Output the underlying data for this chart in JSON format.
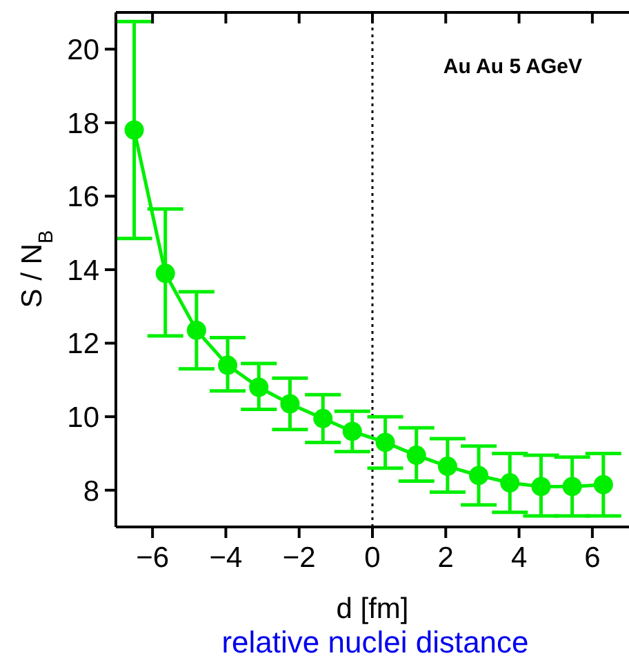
{
  "chart_data": {
    "type": "line",
    "xlabel": "d [fm]",
    "ylabel": "S / N$_{B}$",
    "x": [
      -6.5,
      -5.65,
      -4.8,
      -3.95,
      -3.1,
      -2.25,
      -1.35,
      -0.55,
      0.35,
      1.2,
      2.05,
      2.9,
      3.75,
      4.6,
      5.45,
      6.3
    ],
    "series": [
      {
        "color": "#00ee00",
        "values": [
          17.8,
          13.9,
          12.35,
          11.4,
          10.8,
          10.35,
          9.95,
          9.6,
          9.3,
          8.95,
          8.65,
          8.4,
          8.2,
          8.1,
          8.1,
          8.15
        ],
        "errors": [
          [
            14.85,
            20.75
          ],
          [
            12.2,
            15.65
          ],
          [
            11.3,
            13.4
          ],
          [
            10.7,
            12.15
          ],
          [
            10.2,
            11.45
          ],
          [
            9.65,
            11.05
          ],
          [
            9.3,
            10.6
          ],
          [
            9.05,
            10.15
          ],
          [
            8.6,
            10.0
          ],
          [
            8.25,
            9.7
          ],
          [
            7.95,
            9.4
          ],
          [
            7.6,
            9.2
          ],
          [
            7.4,
            9.0
          ],
          [
            7.3,
            8.95
          ],
          [
            7.3,
            8.9
          ],
          [
            7.3,
            9.0
          ]
        ]
      }
    ],
    "xlim": [
      -7,
      7
    ],
    "ylim": [
      7,
      21
    ],
    "xticks": [
      {
        "value": -6,
        "label": "−6"
      },
      {
        "value": -4,
        "label": "−4"
      },
      {
        "value": -2,
        "label": "−2"
      },
      0,
      2,
      4,
      6
    ],
    "yticks": [
      8,
      10,
      12,
      14,
      16,
      18,
      20
    ],
    "marker": "circle",
    "line_style": "solid",
    "ref_lines": [
      {
        "axis": "x",
        "value": 0,
        "color": "#000000",
        "line_style": "dotted"
      }
    ],
    "annotations": [
      "Au Au 5 AGeV",
      "relative nuclei distance"
    ]
  }
}
